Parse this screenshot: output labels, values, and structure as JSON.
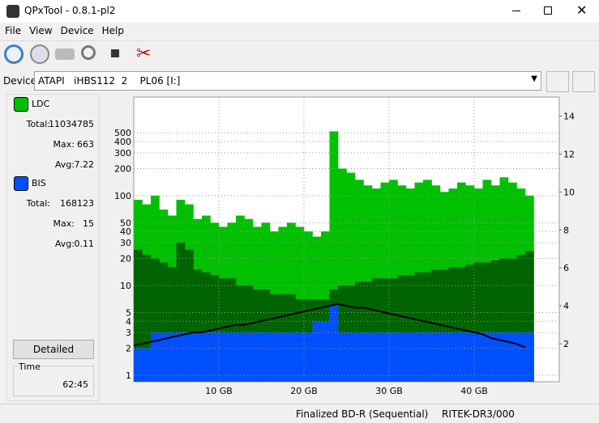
{
  "window": {
    "title": "QPxTool - 0.8.1-pl2"
  },
  "menu": [
    "File",
    "View",
    "Device",
    "Help"
  ],
  "device": {
    "label": "Device:",
    "value": "ATAPI   iHBS112  2    PL06 [I:]"
  },
  "stats": [
    [
      {
        "label": "Total:",
        "value": 11034785
      },
      {
        "label": "Max:",
        "value": 663
      },
      {
        "label": "Avg:",
        "value": 7.22
      }
    ],
    [
      {
        "label": "Total:",
        "value": 168123
      },
      {
        "label": "Max:",
        "value": 15
      },
      {
        "label": "Avg:",
        "value": 0.11
      }
    ]
  ],
  "detailed": "Detailed",
  "time": {
    "label": "Time",
    "value": "62:45"
  },
  "status": [
    "Finalized BD-R (Sequential)",
    "RITEK-DR3/000"
  ],
  "chart_data": {
    "type": "bar",
    "ylog": true,
    "grid": true,
    "x": [
      0,
      1,
      2,
      3,
      4,
      5,
      6,
      7,
      8,
      9,
      10,
      11,
      12,
      13,
      14,
      15,
      16,
      17,
      18,
      19,
      20,
      21,
      22,
      23,
      24,
      25,
      26,
      27,
      28,
      29,
      30,
      31,
      32,
      33,
      34,
      35,
      36,
      37,
      38,
      39,
      40,
      41,
      42,
      43,
      44,
      45,
      46
    ],
    "series": [
      {
        "name": "LDC",
        "color": "#00c000",
        "values": [
          90,
          80,
          100,
          70,
          60,
          90,
          80,
          55,
          60,
          50,
          45,
          50,
          60,
          55,
          45,
          50,
          40,
          45,
          50,
          45,
          40,
          35,
          40,
          520,
          200,
          180,
          150,
          130,
          120,
          140,
          150,
          130,
          120,
          140,
          150,
          130,
          110,
          120,
          140,
          130,
          120,
          150,
          130,
          160,
          140,
          120,
          100
        ]
      },
      {
        "color": "#006400",
        "values": [
          25,
          22,
          20,
          18,
          16,
          30,
          25,
          15,
          14,
          13,
          12,
          12,
          10,
          10,
          9,
          9,
          8,
          8,
          8,
          7,
          7,
          7,
          7,
          9,
          10,
          10,
          11,
          11,
          12,
          12,
          12,
          13,
          13,
          14,
          14,
          15,
          15,
          16,
          16,
          17,
          18,
          18,
          19,
          20,
          20,
          22,
          24
        ]
      },
      {
        "name": "BIS",
        "color": "#0050ff",
        "values": [
          2,
          2,
          3,
          3,
          3,
          3,
          3,
          3,
          3,
          3,
          3,
          3,
          3,
          3,
          3,
          3,
          3,
          3,
          3,
          3,
          3,
          4,
          4,
          6,
          3,
          3,
          3,
          3,
          3,
          3,
          3,
          3,
          3,
          3,
          3,
          3,
          3,
          3,
          3,
          3,
          3,
          3,
          3,
          3,
          3,
          3,
          3
        ]
      },
      {
        "type": "line",
        "axis": "y2",
        "color": "#000000",
        "values": [
          1.9,
          2.0,
          2.1,
          2.2,
          2.3,
          2.4,
          2.5,
          2.6,
          2.6,
          2.7,
          2.8,
          2.9,
          3.0,
          3.0,
          3.1,
          3.2,
          3.3,
          3.4,
          3.5,
          3.6,
          3.7,
          3.8,
          3.9,
          4.0,
          4.1,
          4.0,
          3.9,
          3.9,
          3.8,
          3.7,
          3.6,
          3.5,
          3.4,
          3.3,
          3.2,
          3.1,
          3.0,
          2.9,
          2.8,
          2.7,
          2.6,
          2.5,
          2.3,
          2.2,
          2.1,
          2.0,
          1.8
        ]
      }
    ],
    "xlim": [
      0,
      50
    ],
    "xticks": [
      {
        "value": 10,
        "label": "10 GB"
      },
      {
        "value": 20,
        "label": "20 GB"
      },
      {
        "value": 30,
        "label": "30 GB"
      },
      {
        "value": 40,
        "label": "40 GB"
      }
    ],
    "ylim": [
      0.85,
      1250
    ],
    "yticks": [
      1,
      2,
      3,
      4,
      5,
      10,
      20,
      30,
      40,
      50,
      100,
      200,
      300,
      400,
      500
    ],
    "y2lim": [
      0,
      15
    ],
    "y2ticks": [
      2,
      4,
      6,
      8,
      10,
      12,
      14
    ]
  }
}
